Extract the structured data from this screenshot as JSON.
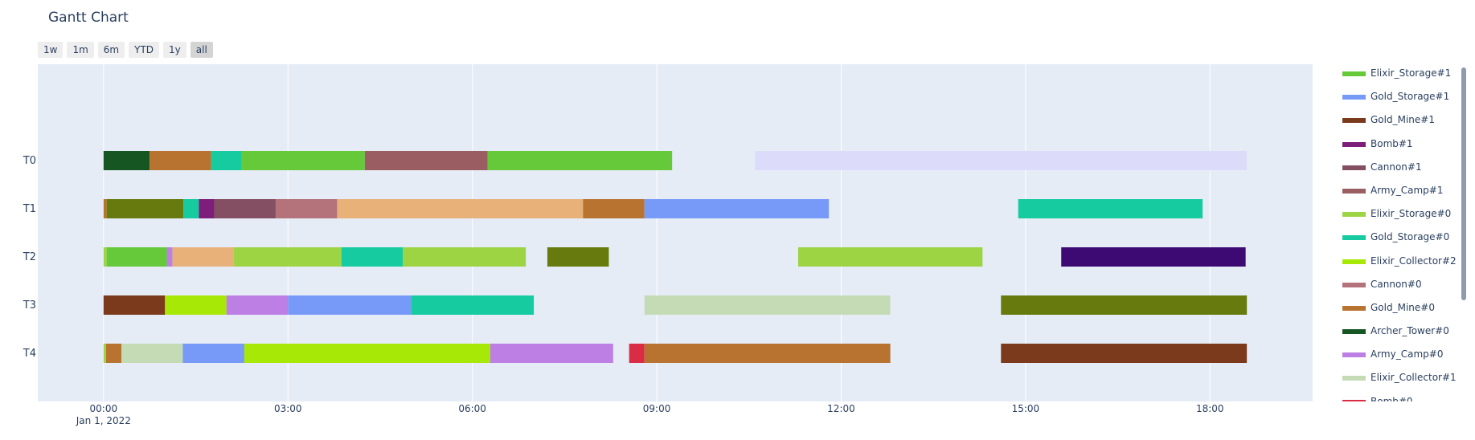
{
  "title": "Gantt Chart",
  "range_buttons": [
    "1w",
    "1m",
    "6m",
    "YTD",
    "1y",
    "all"
  ],
  "active_range": "all",
  "plot_bg": "#e5ecf6",
  "chart_data": {
    "type": "gantt",
    "title": "Gantt Chart",
    "x_unit": "hours from 2022-01-01 00:00",
    "xlim": [
      -1.07,
      19.67
    ],
    "x_ticks": [
      {
        "value": 0,
        "label": "00:00",
        "sublabel": "Jan 1, 2022"
      },
      {
        "value": 3,
        "label": "03:00"
      },
      {
        "value": 6,
        "label": "06:00"
      },
      {
        "value": 9,
        "label": "09:00"
      },
      {
        "value": 12,
        "label": "12:00"
      },
      {
        "value": 15,
        "label": "15:00"
      },
      {
        "value": 18,
        "label": "18:00"
      }
    ],
    "rows": [
      "T0",
      "T1",
      "T2",
      "T3",
      "T4"
    ],
    "legend": [
      {
        "name": "Elixir_Storage#1",
        "color": "#66c93a"
      },
      {
        "name": "Gold_Storage#1",
        "color": "#7799f8"
      },
      {
        "name": "Gold_Mine#1",
        "color": "#7b3a1b"
      },
      {
        "name": "Bomb#1",
        "color": "#7d1e7a"
      },
      {
        "name": "Cannon#1",
        "color": "#854f63"
      },
      {
        "name": "Army_Camp#1",
        "color": "#9a5e62"
      },
      {
        "name": "Elixir_Storage#0",
        "color": "#9dd444"
      },
      {
        "name": "Gold_Storage#0",
        "color": "#17cba0"
      },
      {
        "name": "Elixir_Collector#2",
        "color": "#a8e806"
      },
      {
        "name": "Cannon#0",
        "color": "#b4727a"
      },
      {
        "name": "Gold_Mine#0",
        "color": "#b97330"
      },
      {
        "name": "Archer_Tower#0",
        "color": "#165623"
      },
      {
        "name": "Army_Camp#0",
        "color": "#bd7fe3"
      },
      {
        "name": "Elixir_Collector#1",
        "color": "#c4dbb5"
      },
      {
        "name": "Bomb#0",
        "color": "#da2c44"
      }
    ],
    "tasks": [
      {
        "row": "T0",
        "start": 0.0,
        "end": 0.75,
        "color": "#165623"
      },
      {
        "row": "T0",
        "start": 0.75,
        "end": 1.75,
        "color": "#b97330"
      },
      {
        "row": "T0",
        "start": 1.75,
        "end": 2.25,
        "color": "#17cba0"
      },
      {
        "row": "T0",
        "start": 2.25,
        "end": 4.25,
        "color": "#66c93a"
      },
      {
        "row": "T0",
        "start": 4.25,
        "end": 6.25,
        "color": "#9a5e62"
      },
      {
        "row": "T0",
        "start": 6.25,
        "end": 9.25,
        "color": "#66c93a"
      },
      {
        "row": "T0",
        "start": 10.6,
        "end": 18.6,
        "color": "#dcdcfa"
      },
      {
        "row": "T1",
        "start": 0.0,
        "end": 0.05,
        "color": "#b97330"
      },
      {
        "row": "T1",
        "start": 0.05,
        "end": 1.3,
        "color": "#667a0e"
      },
      {
        "row": "T1",
        "start": 1.3,
        "end": 1.55,
        "color": "#17cba0"
      },
      {
        "row": "T1",
        "start": 1.55,
        "end": 1.8,
        "color": "#7d1e7a"
      },
      {
        "row": "T1",
        "start": 1.8,
        "end": 2.8,
        "color": "#854f63"
      },
      {
        "row": "T1",
        "start": 2.8,
        "end": 3.8,
        "color": "#b4727a"
      },
      {
        "row": "T1",
        "start": 3.8,
        "end": 7.8,
        "color": "#e8b17a"
      },
      {
        "row": "T1",
        "start": 7.8,
        "end": 8.8,
        "color": "#b97330"
      },
      {
        "row": "T1",
        "start": 8.8,
        "end": 11.8,
        "color": "#7799f8"
      },
      {
        "row": "T1",
        "start": 14.88,
        "end": 17.88,
        "color": "#17cba0"
      },
      {
        "row": "T2",
        "start": 0.0,
        "end": 0.05,
        "color": "#9dd444"
      },
      {
        "row": "T2",
        "start": 0.05,
        "end": 1.03,
        "color": "#66c93a"
      },
      {
        "row": "T2",
        "start": 1.03,
        "end": 1.12,
        "color": "#bd7fe3"
      },
      {
        "row": "T2",
        "start": 1.12,
        "end": 2.12,
        "color": "#e8b17a"
      },
      {
        "row": "T2",
        "start": 2.12,
        "end": 3.87,
        "color": "#9dd444"
      },
      {
        "row": "T2",
        "start": 3.87,
        "end": 4.87,
        "color": "#17cba0"
      },
      {
        "row": "T2",
        "start": 4.87,
        "end": 6.87,
        "color": "#9dd444"
      },
      {
        "row": "T2",
        "start": 7.22,
        "end": 8.22,
        "color": "#667a0e"
      },
      {
        "row": "T2",
        "start": 11.3,
        "end": 14.3,
        "color": "#9dd444"
      },
      {
        "row": "T2",
        "start": 15.58,
        "end": 18.58,
        "color": "#3c0a72"
      },
      {
        "row": "T3",
        "start": 0.0,
        "end": 1.0,
        "color": "#7b3a1b"
      },
      {
        "row": "T3",
        "start": 1.0,
        "end": 2.0,
        "color": "#a8e806"
      },
      {
        "row": "T3",
        "start": 2.0,
        "end": 3.0,
        "color": "#bd7fe3"
      },
      {
        "row": "T3",
        "start": 3.0,
        "end": 5.0,
        "color": "#7799f8"
      },
      {
        "row": "T3",
        "start": 5.0,
        "end": 7.0,
        "color": "#17cba0"
      },
      {
        "row": "T3",
        "start": 8.8,
        "end": 12.8,
        "color": "#c4dbb5"
      },
      {
        "row": "T3",
        "start": 14.6,
        "end": 18.6,
        "color": "#667a0e"
      },
      {
        "row": "T4",
        "start": 0.0,
        "end": 0.04,
        "color": "#9dd444"
      },
      {
        "row": "T4",
        "start": 0.04,
        "end": 0.29,
        "color": "#b97330"
      },
      {
        "row": "T4",
        "start": 0.29,
        "end": 1.29,
        "color": "#c4dbb5"
      },
      {
        "row": "T4",
        "start": 1.29,
        "end": 2.29,
        "color": "#7799f8"
      },
      {
        "row": "T4",
        "start": 2.29,
        "end": 6.29,
        "color": "#a8e806"
      },
      {
        "row": "T4",
        "start": 6.29,
        "end": 8.29,
        "color": "#bd7fe3"
      },
      {
        "row": "T4",
        "start": 8.55,
        "end": 8.8,
        "color": "#da2c44"
      },
      {
        "row": "T4",
        "start": 8.8,
        "end": 12.8,
        "color": "#b97330"
      },
      {
        "row": "T4",
        "start": 14.6,
        "end": 18.6,
        "color": "#7b3a1b"
      }
    ]
  }
}
